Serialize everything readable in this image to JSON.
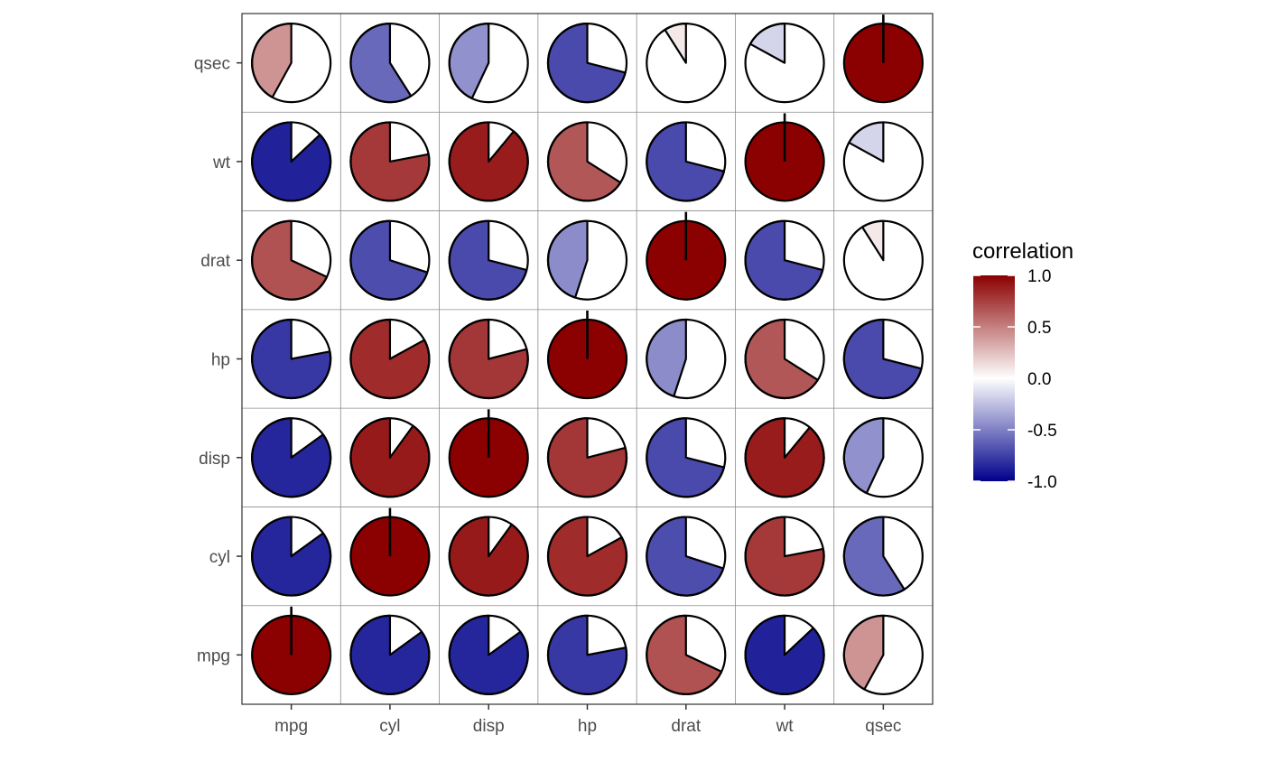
{
  "chart_data": {
    "type": "correlogram-pie",
    "variables": [
      "mpg",
      "cyl",
      "disp",
      "hp",
      "drat",
      "wt",
      "qsec"
    ],
    "x_labels": [
      "mpg",
      "cyl",
      "disp",
      "hp",
      "drat",
      "wt",
      "qsec"
    ],
    "y_labels_bottom_to_top": [
      "mpg",
      "cyl",
      "disp",
      "hp",
      "drat",
      "wt",
      "qsec"
    ],
    "matrix": [
      [
        1.0,
        -0.85,
        -0.85,
        -0.78,
        0.68,
        -0.87,
        0.42
      ],
      [
        -0.85,
        1.0,
        0.9,
        0.83,
        -0.7,
        0.78,
        -0.59
      ],
      [
        -0.85,
        0.9,
        1.0,
        0.79,
        -0.71,
        0.89,
        -0.43
      ],
      [
        -0.78,
        0.83,
        0.79,
        1.0,
        -0.45,
        0.66,
        -0.71
      ],
      [
        0.68,
        -0.7,
        -0.71,
        -0.45,
        1.0,
        -0.71,
        0.09
      ],
      [
        -0.87,
        0.78,
        0.89,
        0.66,
        -0.71,
        1.0,
        -0.17
      ],
      [
        0.42,
        -0.59,
        -0.43,
        -0.71,
        0.09,
        -0.17,
        1.0
      ]
    ],
    "legend": {
      "title": "correlation",
      "placement": "right",
      "range": [
        -1,
        1
      ],
      "tick_values": [
        1,
        0.5,
        0,
        -0.5,
        -1
      ],
      "tick_labels": [
        "1.0",
        "0.5",
        "0.0",
        "-0.5",
        "-1.0"
      ],
      "low_color": "#00008B",
      "mid_color": "#FFFFFF",
      "high_color": "#8B0000"
    },
    "grid": true
  }
}
